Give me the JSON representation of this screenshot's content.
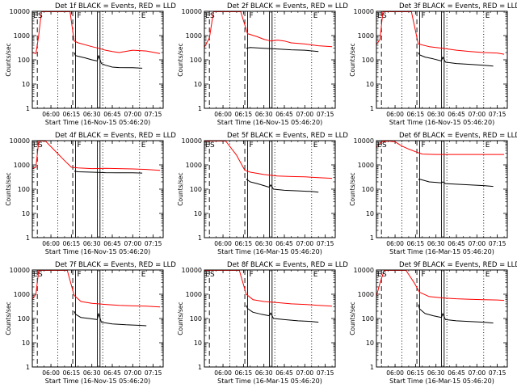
{
  "page": {
    "background": "#ffffff",
    "axis_color": "#000000",
    "events_color": "#000000",
    "lld_color": "#ff0000"
  },
  "chart_data": [
    {
      "type": "line",
      "panel": "1f",
      "title": "Det 1f BLACK = Events, RED = LLD",
      "xlabel": "Start Time (16-Nov-15 05:46:20)",
      "ylabel": "Counts/sec",
      "yscale": "log",
      "ylim": [
        1,
        10000
      ],
      "ytick_labels": [
        "1",
        "10",
        "100",
        "1000",
        "10000"
      ],
      "xlim": [
        "05:46:20",
        "07:22:20"
      ],
      "xtick_labels": [
        "06:00",
        "06:15",
        "06:30",
        "06:45",
        "07:00",
        "07:15"
      ],
      "corner_labels": [
        "E",
        "S",
        "F",
        "E"
      ],
      "dashed_lines": [
        "05:50",
        "06:16"
      ],
      "dotted_lines": [
        "06:05",
        "06:38",
        "07:05"
      ],
      "solid_lines": [
        "06:18",
        "06:34",
        "06:36"
      ],
      "series": [
        {
          "color": "#000000",
          "x": [
            "06:17",
            "06:18",
            "06:20",
            "06:25",
            "06:30",
            "06:34",
            "06:35",
            "06:37",
            "06:40",
            "06:45",
            "06:50",
            "07:00",
            "07:07"
          ],
          "y": [
            200,
            150,
            140,
            120,
            100,
            90,
            150,
            70,
            60,
            50,
            48,
            47,
            45
          ]
        },
        {
          "color": "#ff0000",
          "x": [
            "05:46",
            "05:49",
            "05:51",
            "05:53",
            "06:14",
            "06:17",
            "06:20",
            "06:30",
            "06:35",
            "06:40",
            "06:45",
            "06:50",
            "07:00",
            "07:10",
            "07:20"
          ],
          "y": [
            200,
            180,
            1000,
            10000,
            10000,
            600,
            500,
            350,
            300,
            250,
            220,
            200,
            250,
            230,
            180
          ]
        }
      ]
    },
    {
      "type": "line",
      "panel": "2f",
      "title": "Det 2f BLACK = Events, RED = LLD",
      "xlabel": "Start Time (16-Nov-15 05:46:20)",
      "ylabel": "Counts/sec",
      "yscale": "log",
      "ylim": [
        1,
        10000
      ],
      "ytick_labels": [
        "1",
        "10",
        "100",
        "1000",
        "10000"
      ],
      "xlim": [
        "05:46:20",
        "07:22:20"
      ],
      "xtick_labels": [
        "06:00",
        "06:15",
        "06:30",
        "06:45",
        "07:00",
        "07:15"
      ],
      "corner_labels": [
        "E",
        "S",
        "F",
        "E"
      ],
      "dashed_lines": [
        "05:50",
        "06:16"
      ],
      "dotted_lines": [
        "06:05",
        "06:38",
        "07:05"
      ],
      "solid_lines": [
        "06:18",
        "06:34",
        "06:36"
      ],
      "series": [
        {
          "color": "#000000",
          "x": [
            "06:17",
            "06:20",
            "06:30",
            "06:40",
            "06:50",
            "07:00",
            "07:10"
          ],
          "y": [
            300,
            320,
            300,
            280,
            260,
            250,
            220
          ]
        },
        {
          "color": "#ff0000",
          "x": [
            "05:46",
            "05:50",
            "05:53",
            "06:13",
            "06:18",
            "06:25",
            "06:30",
            "06:35",
            "06:40",
            "06:45",
            "06:50",
            "07:00",
            "07:10",
            "07:20"
          ],
          "y": [
            300,
            800,
            10000,
            10000,
            1200,
            900,
            700,
            600,
            650,
            600,
            500,
            450,
            380,
            350
          ]
        }
      ]
    },
    {
      "type": "line",
      "panel": "3f",
      "title": "Det 3f BLACK = Events, RED = LLD",
      "xlabel": "Start Time (16-Nov-15 05:46:20)",
      "ylabel": "Counts/sec",
      "yscale": "log",
      "ylim": [
        1,
        10000
      ],
      "ytick_labels": [
        "1",
        "10",
        "100",
        "1000",
        "10000"
      ],
      "xlim": [
        "05:46:20",
        "07:22:20"
      ],
      "xtick_labels": [
        "06:00",
        "06:15",
        "06:30",
        "06:45",
        "07:00",
        "07:15"
      ],
      "corner_labels": [
        "E",
        "S",
        "F",
        "E"
      ],
      "dashed_lines": [
        "05:50",
        "06:16"
      ],
      "dotted_lines": [
        "06:05",
        "06:38",
        "07:05"
      ],
      "solid_lines": [
        "06:18",
        "06:34",
        "06:36"
      ],
      "series": [
        {
          "color": "#000000",
          "x": [
            "06:17",
            "06:18",
            "06:22",
            "06:28",
            "06:34",
            "06:35",
            "06:37",
            "06:45",
            "06:55",
            "07:05",
            "07:12"
          ],
          "y": [
            200,
            160,
            130,
            110,
            90,
            130,
            80,
            70,
            65,
            60,
            55
          ]
        },
        {
          "color": "#ff0000",
          "x": [
            "05:46",
            "05:49",
            "05:51",
            "06:12",
            "06:17",
            "06:25",
            "06:35",
            "06:45",
            "06:55",
            "07:05",
            "07:15",
            "07:20"
          ],
          "y": [
            400,
            700,
            10000,
            10000,
            450,
            350,
            300,
            250,
            220,
            200,
            190,
            170
          ]
        }
      ]
    },
    {
      "type": "line",
      "panel": "4f",
      "title": "Det 4f BLACK = Events, RED = LLD",
      "xlabel": "Start Time (16-Nov-15 05:46:20)",
      "ylabel": "Counts/sec",
      "yscale": "log",
      "ylim": [
        1,
        10000
      ],
      "ytick_labels": [
        "1",
        "10",
        "100",
        "1000",
        "10000"
      ],
      "xlim": [
        "05:46:20",
        "07:22:20"
      ],
      "xtick_labels": [
        "06:00",
        "06:15",
        "06:30",
        "06:45",
        "07:00",
        "07:15"
      ],
      "corner_labels": [
        "E",
        "S",
        "F",
        "E"
      ],
      "dashed_lines": [
        "05:50",
        "06:16"
      ],
      "dotted_lines": [
        "06:05",
        "06:38",
        "07:05"
      ],
      "solid_lines": [
        "06:18",
        "06:34",
        "06:36"
      ],
      "series": [
        {
          "color": "#000000",
          "x": [
            "06:17",
            "06:20",
            "06:30",
            "06:40",
            "06:50",
            "07:00",
            "07:07"
          ],
          "y": [
            550,
            520,
            500,
            480,
            470,
            470,
            460
          ]
        },
        {
          "color": "#ff0000",
          "x": [
            "05:46",
            "05:49",
            "05:51",
            "05:56",
            "06:10",
            "06:15",
            "06:20",
            "06:30",
            "06:40",
            "06:50",
            "07:00",
            "07:10",
            "07:20"
          ],
          "y": [
            700,
            800,
            10000,
            10000,
            1500,
            800,
            750,
            700,
            720,
            700,
            680,
            650,
            600
          ]
        }
      ]
    },
    {
      "type": "line",
      "panel": "5f",
      "title": "Det 5f BLACK = Events, RED = LLD",
      "xlabel": "Start Time (16-Mar-15 05:46:20)",
      "ylabel": "Counts/sec",
      "yscale": "log",
      "ylim": [
        1,
        10000
      ],
      "ytick_labels": [
        "1",
        "10",
        "100",
        "1000",
        "10000"
      ],
      "xlim": [
        "05:46:20",
        "07:22:20"
      ],
      "xtick_labels": [
        "06:00",
        "06:15",
        "06:30",
        "06:45",
        "07:00",
        "07:15"
      ],
      "corner_labels": [
        "E",
        "S",
        "F",
        "E"
      ],
      "dashed_lines": [
        "05:50",
        "06:16"
      ],
      "dotted_lines": [
        "06:05",
        "06:38",
        "07:05"
      ],
      "solid_lines": [
        "06:18",
        "06:34",
        "06:36"
      ],
      "series": [
        {
          "color": "#000000",
          "x": [
            "06:17",
            "06:20",
            "06:25",
            "06:30",
            "06:34",
            "06:35",
            "06:37",
            "06:45",
            "06:55",
            "07:05",
            "07:10"
          ],
          "y": [
            260,
            200,
            170,
            140,
            120,
            150,
            100,
            90,
            85,
            80,
            75
          ]
        },
        {
          "color": "#ff0000",
          "x": [
            "05:46",
            "05:50",
            "05:54",
            "06:02",
            "06:10",
            "06:16",
            "06:20",
            "06:30",
            "06:40",
            "06:50",
            "07:00",
            "07:10",
            "07:20"
          ],
          "y": [
            10000,
            10000,
            10000,
            10000,
            2500,
            600,
            500,
            400,
            350,
            330,
            320,
            300,
            280
          ]
        }
      ]
    },
    {
      "type": "line",
      "panel": "6f",
      "title": "Det 6f BLACK = Events, RED = LLD",
      "xlabel": "Start Time (16-Mar-15 05:46:20)",
      "ylabel": "Counts/sec",
      "yscale": "log",
      "ylim": [
        1,
        10000
      ],
      "ytick_labels": [
        "1",
        "10",
        "100",
        "1000",
        "10000"
      ],
      "xlim": [
        "05:46:20",
        "07:22:20"
      ],
      "xtick_labels": [
        "06:00",
        "06:15",
        "06:30",
        "06:45",
        "07:00",
        "07:15"
      ],
      "corner_labels": [
        "E",
        "S",
        "F",
        "E"
      ],
      "dashed_lines": [
        "05:50",
        "06:16"
      ],
      "dotted_lines": [
        "06:05",
        "06:38",
        "07:05"
      ],
      "solid_lines": [
        "06:18",
        "06:34",
        "06:36"
      ],
      "series": [
        {
          "color": "#000000",
          "x": [
            "06:17",
            "06:18",
            "06:25",
            "06:30",
            "06:34",
            "06:35",
            "06:37",
            "06:45",
            "06:55",
            "07:05",
            "07:12"
          ],
          "y": [
            250,
            260,
            200,
            190,
            180,
            200,
            170,
            160,
            150,
            140,
            130
          ]
        },
        {
          "color": "#ff0000",
          "x": [
            "05:46",
            "05:50",
            "05:55",
            "06:00",
            "06:05",
            "06:10",
            "06:15",
            "06:20",
            "06:30",
            "06:45",
            "07:00",
            "07:15",
            "07:20"
          ],
          "y": [
            5000,
            9000,
            10000,
            9000,
            6000,
            4500,
            3500,
            2800,
            2700,
            2700,
            2700,
            2700,
            2700
          ]
        }
      ]
    },
    {
      "type": "line",
      "panel": "7f",
      "title": "Det 7f BLACK = Events, RED = LLD",
      "xlabel": "Start Time (16-Nov-15 05:46:20)",
      "ylabel": "Counts/sec",
      "yscale": "log",
      "ylim": [
        1,
        10000
      ],
      "ytick_labels": [
        "1",
        "10",
        "100",
        "1000",
        "10000"
      ],
      "xlim": [
        "05:46:20",
        "07:22:20"
      ],
      "xtick_labels": [
        "06:00",
        "06:15",
        "06:30",
        "06:45",
        "07:00",
        "07:15"
      ],
      "corner_labels": [
        "E",
        "S",
        "F",
        "E"
      ],
      "dashed_lines": [
        "05:50",
        "06:16"
      ],
      "dotted_lines": [
        "06:05",
        "06:38",
        "07:05"
      ],
      "solid_lines": [
        "06:18",
        "06:34",
        "06:36"
      ],
      "series": [
        {
          "color": "#000000",
          "x": [
            "06:17",
            "06:18",
            "06:22",
            "06:28",
            "06:34",
            "06:35",
            "06:37",
            "06:45",
            "06:55",
            "07:05",
            "07:10"
          ],
          "y": [
            200,
            150,
            110,
            100,
            90,
            160,
            70,
            60,
            55,
            52,
            50
          ]
        },
        {
          "color": "#ff0000",
          "x": [
            "05:46",
            "05:49",
            "05:51",
            "06:12",
            "06:17",
            "06:22",
            "06:30",
            "06:40",
            "06:50",
            "07:00",
            "07:10",
            "07:20"
          ],
          "y": [
            600,
            1000,
            10000,
            10000,
            900,
            500,
            420,
            380,
            350,
            330,
            320,
            300
          ]
        }
      ]
    },
    {
      "type": "line",
      "panel": "8f",
      "title": "Det 8f BLACK = Events, RED = LLD",
      "xlabel": "Start Time (16-Mar-15 05:46:20)",
      "ylabel": "Counts/sec",
      "yscale": "log",
      "ylim": [
        1,
        10000
      ],
      "ytick_labels": [
        "1",
        "10",
        "100",
        "1000",
        "10000"
      ],
      "xlim": [
        "05:46:20",
        "07:22:20"
      ],
      "xtick_labels": [
        "06:00",
        "06:15",
        "06:30",
        "06:45",
        "07:00",
        "07:15"
      ],
      "corner_labels": [
        "E",
        "S",
        "F",
        "E"
      ],
      "dashed_lines": [
        "05:50",
        "06:16"
      ],
      "dotted_lines": [
        "06:05",
        "06:38",
        "07:05"
      ],
      "solid_lines": [
        "06:18",
        "06:34",
        "06:36"
      ],
      "series": [
        {
          "color": "#000000",
          "x": [
            "06:17",
            "06:18",
            "06:22",
            "06:28",
            "06:34",
            "06:35",
            "06:37",
            "06:45",
            "06:55",
            "07:05",
            "07:10"
          ],
          "y": [
            350,
            260,
            180,
            150,
            130,
            170,
            100,
            90,
            80,
            75,
            70
          ]
        },
        {
          "color": "#ff0000",
          "x": [
            "05:46",
            "05:50",
            "05:55",
            "06:12",
            "06:17",
            "06:22",
            "06:30",
            "06:40",
            "06:50",
            "07:00",
            "07:10",
            "07:20"
          ],
          "y": [
            10000,
            10000,
            10000,
            10000,
            1000,
            600,
            500,
            450,
            400,
            380,
            350,
            320
          ]
        }
      ]
    },
    {
      "type": "line",
      "panel": "9f",
      "title": "Det 9f BLACK = Events, RED = LLD",
      "xlabel": "Start Time (16-Mar-15 05:46:20)",
      "ylabel": "Counts/sec",
      "yscale": "log",
      "ylim": [
        1,
        10000
      ],
      "ytick_labels": [
        "1",
        "10",
        "100",
        "1000",
        "10000"
      ],
      "xlim": [
        "05:46:20",
        "07:22:20"
      ],
      "xtick_labels": [
        "06:00",
        "06:15",
        "06:30",
        "06:45",
        "07:00",
        "07:15"
      ],
      "corner_labels": [
        "E",
        "S",
        "F",
        "E"
      ],
      "dashed_lines": [
        "05:50",
        "06:16"
      ],
      "dotted_lines": [
        "06:05",
        "06:38",
        "07:05"
      ],
      "solid_lines": [
        "06:18",
        "06:34",
        "06:36"
      ],
      "series": [
        {
          "color": "#000000",
          "x": [
            "06:17",
            "06:18",
            "06:22",
            "06:28",
            "06:34",
            "06:35",
            "06:37",
            "06:45",
            "06:55",
            "07:05",
            "07:12"
          ],
          "y": [
            380,
            250,
            160,
            130,
            110,
            160,
            90,
            80,
            75,
            70,
            65
          ]
        },
        {
          "color": "#ff0000",
          "x": [
            "05:46",
            "05:49",
            "05:52",
            "06:00",
            "06:08",
            "06:14",
            "06:18",
            "06:25",
            "06:35",
            "06:45",
            "06:55",
            "07:05",
            "07:15",
            "07:20"
          ],
          "y": [
            700,
            3000,
            10000,
            10000,
            10000,
            3000,
            1200,
            800,
            700,
            650,
            620,
            600,
            580,
            560
          ]
        }
      ]
    }
  ]
}
